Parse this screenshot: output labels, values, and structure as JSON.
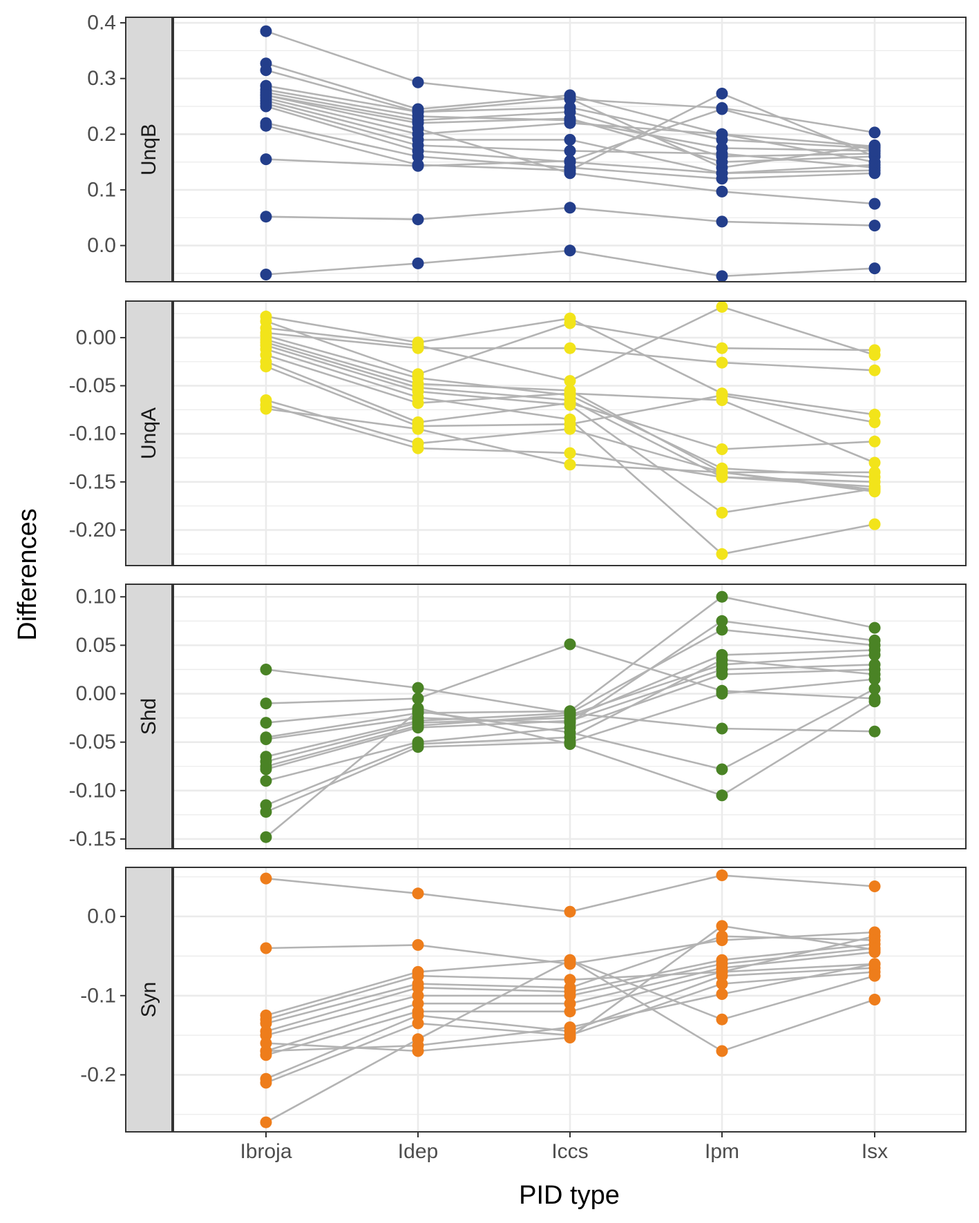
{
  "chart_data": {
    "type": "line",
    "xlabel": "PID type",
    "ylabel": "Differences",
    "categories": [
      "Ibroja",
      "Idep",
      "Iccs",
      "Ipm",
      "Isx"
    ],
    "grid": true,
    "connector_color": "#b3b3b3",
    "panels": [
      {
        "label": "UnqB",
        "color": "#233e8b",
        "ylim": [
          -0.065,
          0.41
        ],
        "ticks": [
          0.0,
          0.1,
          0.2,
          0.3,
          0.4
        ],
        "tick_labels": [
          "0.0",
          "0.1",
          "0.2",
          "0.3",
          "0.4"
        ],
        "series": [
          {
            "values": [
              0.385,
              0.293,
              0.263,
              0.247,
              0.203
            ]
          },
          {
            "values": [
              0.327,
              0.245,
              0.27,
              0.2,
              0.178
            ]
          },
          {
            "values": [
              0.315,
              0.24,
              0.264,
              0.14,
              0.18
            ]
          },
          {
            "values": [
              0.287,
              0.24,
              0.248,
              0.19,
              0.175
            ]
          },
          {
            "values": [
              0.28,
              0.232,
              0.225,
              0.175,
              0.17
            ]
          },
          {
            "values": [
              0.275,
              0.225,
              0.24,
              0.16,
              0.165
            ]
          },
          {
            "values": [
              0.27,
              0.22,
              0.228,
              0.15,
              0.16
            ]
          },
          {
            "values": [
              0.265,
              0.2,
              0.22,
              0.2,
              0.15
            ]
          },
          {
            "values": [
              0.26,
              0.19,
              0.19,
              0.13,
              0.145
            ]
          },
          {
            "values": [
              0.255,
              0.18,
              0.17,
              0.165,
              0.14
            ]
          },
          {
            "values": [
              0.25,
              0.17,
              0.15,
              0.13,
              0.135
            ]
          },
          {
            "values": [
              0.22,
              0.16,
              0.14,
              0.12,
              0.13
            ]
          },
          {
            "values": [
              0.215,
              0.145,
              0.135,
              0.273,
              0.16
            ]
          },
          {
            "values": [
              0.155,
              0.143,
              0.152,
              0.245,
              0.17
            ]
          },
          {
            "values": [
              0.052,
              0.047,
              0.068,
              0.043,
              0.036
            ]
          },
          {
            "values": [
              -0.052,
              -0.032,
              -0.009,
              -0.055,
              -0.041
            ]
          },
          {
            "values": [
              0.27,
              0.21,
              0.13,
              0.097,
              0.075
            ]
          }
        ]
      },
      {
        "label": "UnqA",
        "color": "#f2e41a",
        "ylim": [
          -0.237,
          0.038
        ],
        "ticks": [
          0.0,
          -0.05,
          -0.1,
          -0.15,
          -0.2
        ],
        "tick_labels": [
          "0.00",
          "-0.05",
          "-0.10",
          "-0.15",
          "-0.20"
        ],
        "series": [
          {
            "values": [
              0.022,
              -0.005,
              0.02,
              -0.058,
              -0.08
            ]
          },
          {
            "values": [
              0.017,
              -0.038,
              0.015,
              -0.011,
              -0.013
            ]
          },
          {
            "values": [
              0.01,
              -0.008,
              -0.045,
              0.032,
              -0.018
            ]
          },
          {
            "values": [
              0.005,
              -0.011,
              -0.011,
              -0.026,
              -0.034
            ]
          },
          {
            "values": [
              0.002,
              -0.042,
              -0.06,
              -0.136,
              -0.145
            ]
          },
          {
            "values": [
              -0.002,
              -0.048,
              -0.055,
              -0.14,
              -0.16
            ]
          },
          {
            "values": [
              -0.005,
              -0.052,
              -0.065,
              -0.145,
              -0.155
            ]
          },
          {
            "values": [
              -0.008,
              -0.056,
              -0.07,
              -0.182,
              -0.157
            ]
          },
          {
            "values": [
              -0.012,
              -0.062,
              -0.085,
              -0.225,
              -0.194
            ]
          },
          {
            "values": [
              -0.018,
              -0.068,
              -0.058,
              -0.065,
              -0.13
            ]
          },
          {
            "values": [
              -0.025,
              -0.088,
              -0.068,
              -0.116,
              -0.108
            ]
          },
          {
            "values": [
              -0.03,
              -0.092,
              -0.09,
              -0.06,
              -0.088
            ]
          },
          {
            "values": [
              -0.065,
              -0.11,
              -0.095,
              -0.14,
              -0.14
            ]
          },
          {
            "values": [
              -0.07,
              -0.115,
              -0.12,
              -0.145,
              -0.15
            ]
          },
          {
            "values": [
              -0.074,
              -0.095,
              -0.132,
              -0.14,
              -0.158
            ]
          }
        ]
      },
      {
        "label": "Shd",
        "color": "#4a8325",
        "ylim": [
          -0.16,
          0.113
        ],
        "ticks": [
          0.1,
          0.05,
          0.0,
          -0.05,
          -0.1,
          -0.15
        ],
        "tick_labels": [
          "0.10",
          "0.05",
          "0.00",
          "-0.05",
          "-0.10",
          "-0.15"
        ],
        "series": [
          {
            "values": [
              0.025,
              0.006,
              -0.02,
              -0.036,
              -0.039
            ]
          },
          {
            "values": [
              -0.01,
              -0.005,
              0.051,
              0.003,
              -0.005
            ]
          },
          {
            "values": [
              -0.03,
              -0.015,
              -0.052,
              -0.105,
              -0.008
            ]
          },
          {
            "values": [
              -0.045,
              -0.02,
              -0.018,
              0.1,
              0.068
            ]
          },
          {
            "values": [
              -0.047,
              -0.025,
              -0.03,
              0.075,
              0.055
            ]
          },
          {
            "values": [
              -0.065,
              -0.028,
              -0.02,
              0.066,
              0.05
            ]
          },
          {
            "values": [
              -0.07,
              -0.03,
              -0.025,
              0.04,
              0.045
            ]
          },
          {
            "values": [
              -0.075,
              -0.033,
              -0.022,
              0.03,
              0.04
            ]
          },
          {
            "values": [
              -0.078,
              -0.035,
              -0.028,
              0.025,
              0.03
            ]
          },
          {
            "values": [
              -0.09,
              -0.05,
              -0.035,
              0.02,
              0.025
            ]
          },
          {
            "values": [
              -0.115,
              -0.052,
              -0.045,
              0.035,
              0.02
            ]
          },
          {
            "values": [
              -0.122,
              -0.055,
              -0.05,
              0.0,
              0.015
            ]
          },
          {
            "values": [
              -0.148,
              -0.018,
              -0.04,
              -0.078,
              0.005
            ]
          }
        ]
      },
      {
        "label": "Syn",
        "color": "#ee7d1b",
        "ylim": [
          -0.272,
          0.062
        ],
        "ticks": [
          0.0,
          -0.1,
          -0.2
        ],
        "tick_labels": [
          "0.0",
          "-0.1",
          "-0.2"
        ],
        "series": [
          {
            "values": [
              0.048,
              0.029,
              0.006,
              0.052,
              0.038
            ]
          },
          {
            "values": [
              -0.04,
              -0.036,
              -0.06,
              -0.03,
              -0.02
            ]
          },
          {
            "values": [
              -0.125,
              -0.07,
              -0.055,
              -0.17,
              -0.105
            ]
          },
          {
            "values": [
              -0.13,
              -0.075,
              -0.08,
              -0.07,
              -0.025
            ]
          },
          {
            "values": [
              -0.135,
              -0.085,
              -0.09,
              -0.025,
              -0.03
            ]
          },
          {
            "values": [
              -0.145,
              -0.09,
              -0.095,
              -0.055,
              -0.035
            ]
          },
          {
            "values": [
              -0.15,
              -0.1,
              -0.1,
              -0.06,
              -0.04
            ]
          },
          {
            "values": [
              -0.17,
              -0.11,
              -0.11,
              -0.065,
              -0.045
            ]
          },
          {
            "values": [
              -0.175,
              -0.12,
              -0.12,
              -0.07,
              -0.06
            ]
          },
          {
            "values": [
              -0.205,
              -0.125,
              -0.145,
              -0.075,
              -0.065
            ]
          },
          {
            "values": [
              -0.21,
              -0.135,
              -0.15,
              -0.085,
              -0.07
            ]
          },
          {
            "values": [
              -0.26,
              -0.155,
              -0.055,
              -0.13,
              -0.075
            ]
          },
          {
            "values": [
              -0.17,
              -0.163,
              -0.14,
              -0.098,
              -0.06
            ]
          },
          {
            "values": [
              -0.16,
              -0.17,
              -0.153,
              -0.012,
              -0.042
            ]
          }
        ]
      }
    ]
  }
}
